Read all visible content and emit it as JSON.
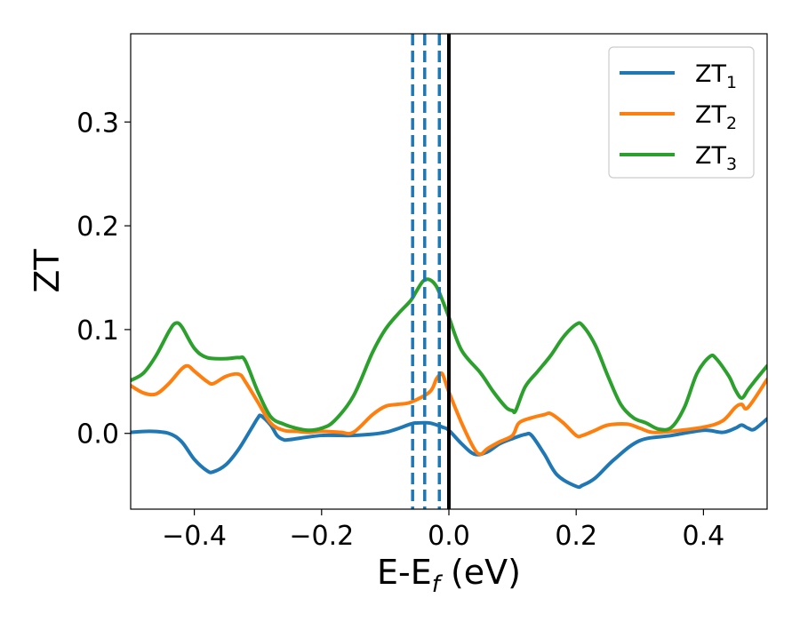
{
  "chart_data": {
    "type": "line",
    "xlabel": "E-E",
    "xlabel_sub": "f",
    "xlabel_unit": " (eV)",
    "ylabel": "ZT",
    "xlim": [
      -0.5,
      0.5
    ],
    "ylim": [
      -0.073,
      0.385
    ],
    "xticks": [
      -0.4,
      -0.2,
      0.0,
      0.2,
      0.4
    ],
    "xtick_labels": [
      "−0.4",
      "−0.2",
      "0.0",
      "0.2",
      "0.4"
    ],
    "yticks": [
      0.0,
      0.1,
      0.2,
      0.3
    ],
    "ytick_labels": [
      "0.0",
      "0.1",
      "0.2",
      "0.3"
    ],
    "grid": false,
    "legend_position": "top-right",
    "fermi_line": {
      "x": 0.0,
      "color": "#000000",
      "style": "solid"
    },
    "dashed_lines": {
      "x": [
        -0.057,
        -0.038,
        -0.015
      ],
      "color": "#1f77b4",
      "style": "dashed"
    },
    "series": [
      {
        "name": "ZT",
        "name_sub": "1",
        "color": "#1f77b4",
        "x": [
          -0.5,
          -0.47,
          -0.44,
          -0.42,
          -0.4,
          -0.38,
          -0.37,
          -0.35,
          -0.33,
          -0.31,
          -0.3,
          -0.295,
          -0.28,
          -0.27,
          -0.26,
          -0.25,
          -0.2,
          -0.15,
          -0.1,
          -0.06,
          -0.05,
          -0.03,
          -0.01,
          0.0,
          0.02,
          0.04,
          0.06,
          0.08,
          0.1,
          0.12,
          0.13,
          0.15,
          0.17,
          0.2,
          0.21,
          0.23,
          0.26,
          0.3,
          0.35,
          0.4,
          0.43,
          0.45,
          0.46,
          0.47,
          0.48,
          0.5
        ],
        "y": [
          0.001,
          0.002,
          0.0,
          -0.008,
          -0.025,
          -0.036,
          -0.037,
          -0.03,
          -0.015,
          0.005,
          0.015,
          0.017,
          0.008,
          -0.002,
          -0.006,
          -0.006,
          -0.002,
          -0.002,
          0.001,
          0.009,
          0.01,
          0.01,
          0.006,
          0.003,
          -0.01,
          -0.02,
          -0.018,
          -0.01,
          -0.005,
          -0.001,
          -0.002,
          -0.02,
          -0.04,
          -0.051,
          -0.05,
          -0.043,
          -0.025,
          -0.007,
          -0.002,
          0.003,
          0.001,
          0.005,
          0.008,
          0.005,
          0.004,
          0.014
        ]
      },
      {
        "name": "ZT",
        "name_sub": "2",
        "color": "#ff7f0e",
        "x": [
          -0.5,
          -0.48,
          -0.46,
          -0.44,
          -0.42,
          -0.41,
          -0.4,
          -0.38,
          -0.37,
          -0.35,
          -0.33,
          -0.32,
          -0.3,
          -0.28,
          -0.26,
          -0.24,
          -0.22,
          -0.2,
          -0.17,
          -0.15,
          -0.12,
          -0.1,
          -0.08,
          -0.06,
          -0.03,
          -0.02,
          -0.015,
          -0.01,
          0.0,
          0.02,
          0.04,
          0.05,
          0.06,
          0.08,
          0.1,
          0.11,
          0.13,
          0.15,
          0.16,
          0.18,
          0.2,
          0.21,
          0.23,
          0.25,
          0.28,
          0.3,
          0.32,
          0.35,
          0.4,
          0.43,
          0.45,
          0.46,
          0.47,
          0.5
        ],
        "y": [
          0.046,
          0.039,
          0.038,
          0.048,
          0.062,
          0.065,
          0.06,
          0.05,
          0.048,
          0.055,
          0.057,
          0.05,
          0.03,
          0.01,
          0.003,
          0.002,
          0.001,
          0.002,
          0.001,
          0.001,
          0.018,
          0.026,
          0.028,
          0.03,
          0.04,
          0.052,
          0.056,
          0.057,
          0.04,
          0.01,
          -0.015,
          -0.02,
          -0.015,
          -0.008,
          -0.002,
          0.01,
          0.015,
          0.018,
          0.019,
          0.01,
          -0.002,
          -0.002,
          0.003,
          0.008,
          0.009,
          0.005,
          0.001,
          0.002,
          0.006,
          0.012,
          0.025,
          0.028,
          0.025,
          0.052
        ]
      },
      {
        "name": "ZT",
        "name_sub": "3",
        "color": "#2ca02c",
        "x": [
          -0.5,
          -0.48,
          -0.46,
          -0.44,
          -0.43,
          -0.42,
          -0.4,
          -0.38,
          -0.35,
          -0.33,
          -0.32,
          -0.3,
          -0.28,
          -0.26,
          -0.24,
          -0.22,
          -0.2,
          -0.18,
          -0.15,
          -0.12,
          -0.1,
          -0.08,
          -0.06,
          -0.05,
          -0.04,
          -0.03,
          -0.02,
          -0.01,
          0.0,
          0.02,
          0.05,
          0.07,
          0.09,
          0.1,
          0.105,
          0.12,
          0.14,
          0.16,
          0.18,
          0.2,
          0.21,
          0.23,
          0.25,
          0.27,
          0.29,
          0.31,
          0.33,
          0.35,
          0.37,
          0.39,
          0.41,
          0.42,
          0.44,
          0.45,
          0.46,
          0.47,
          0.48,
          0.5
        ],
        "y": [
          0.051,
          0.058,
          0.075,
          0.098,
          0.106,
          0.103,
          0.082,
          0.073,
          0.072,
          0.073,
          0.07,
          0.04,
          0.016,
          0.009,
          0.005,
          0.003,
          0.005,
          0.012,
          0.036,
          0.078,
          0.1,
          0.115,
          0.128,
          0.138,
          0.147,
          0.148,
          0.142,
          0.128,
          0.112,
          0.08,
          0.058,
          0.04,
          0.025,
          0.022,
          0.022,
          0.045,
          0.06,
          0.075,
          0.093,
          0.105,
          0.104,
          0.085,
          0.055,
          0.028,
          0.015,
          0.01,
          0.004,
          0.006,
          0.025,
          0.058,
          0.074,
          0.072,
          0.055,
          0.042,
          0.034,
          0.042,
          0.05,
          0.065
        ]
      }
    ]
  }
}
